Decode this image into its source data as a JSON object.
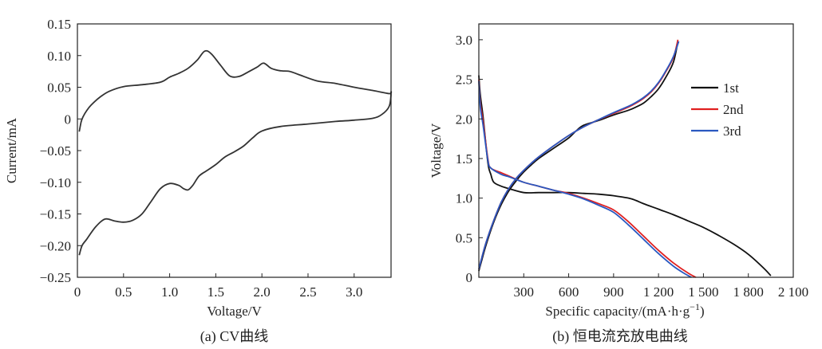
{
  "chart_data": [
    {
      "type": "line",
      "caption": "(a) CV曲线",
      "xlabel": "Voltage/V",
      "ylabel": "Current/mA",
      "xlim": [
        0,
        3.4
      ],
      "ylim": [
        -0.25,
        0.15
      ],
      "xticks": [
        0,
        0.5,
        1.0,
        1.5,
        2.0,
        2.5,
        3.0
      ],
      "xtick_labels": [
        "0",
        "0.5",
        "1.0",
        "1.5",
        "2.0",
        "2.5",
        "3.0"
      ],
      "yticks": [
        -0.25,
        -0.2,
        -0.15,
        -0.1,
        -0.05,
        0,
        0.05,
        0.1,
        0.15
      ],
      "ytick_labels": [
        "−0.25",
        "−0.20",
        "−0.15",
        "−0.10",
        "−0.05",
        "0",
        "0.05",
        "0.10",
        "0.15"
      ],
      "grid": false,
      "series": [
        {
          "color": "#333333",
          "x": [
            0.02,
            0.04,
            0.06,
            0.1,
            0.15,
            0.25,
            0.35,
            0.5,
            0.7,
            0.9,
            1.0,
            1.1,
            1.2,
            1.3,
            1.38,
            1.45,
            1.55,
            1.65,
            1.75,
            1.85,
            1.95,
            2.02,
            2.1,
            2.2,
            2.3,
            2.4,
            2.6,
            2.8,
            3.0,
            3.2,
            3.38,
            3.4,
            3.38,
            3.3,
            3.2,
            3.0,
            2.8,
            2.5,
            2.2,
            2.0,
            1.9,
            1.8,
            1.7,
            1.6,
            1.5,
            1.4,
            1.32,
            1.25,
            1.2,
            1.15,
            1.1,
            1.0,
            0.9,
            0.8,
            0.7,
            0.6,
            0.5,
            0.4,
            0.3,
            0.2,
            0.1,
            0.05,
            0.02
          ],
          "y": [
            -0.02,
            -0.005,
            0.003,
            0.013,
            0.022,
            0.035,
            0.044,
            0.051,
            0.054,
            0.058,
            0.066,
            0.072,
            0.08,
            0.093,
            0.107,
            0.103,
            0.085,
            0.068,
            0.067,
            0.074,
            0.082,
            0.088,
            0.08,
            0.076,
            0.075,
            0.07,
            0.06,
            0.056,
            0.05,
            0.045,
            0.04,
            0.042,
            0.02,
            0.007,
            0.001,
            -0.002,
            -0.004,
            -0.008,
            -0.012,
            -0.019,
            -0.03,
            -0.043,
            -0.052,
            -0.06,
            -0.072,
            -0.082,
            -0.09,
            -0.105,
            -0.112,
            -0.11,
            -0.105,
            -0.102,
            -0.11,
            -0.13,
            -0.15,
            -0.16,
            -0.163,
            -0.161,
            -0.158,
            -0.17,
            -0.19,
            -0.2,
            -0.215
          ]
        }
      ]
    },
    {
      "type": "line",
      "caption": "(b) 恒电流充放电曲线",
      "xlabel": "Specific capacity/(mA·h·g",
      "xlabel_sup": "−1",
      "xlabel_tail": ")",
      "ylabel": "Voltage/V",
      "xlim": [
        0,
        2100
      ],
      "ylim": [
        0,
        3.2
      ],
      "xticks": [
        300,
        600,
        900,
        1200,
        1500,
        1800,
        2100
      ],
      "xtick_labels": [
        "300",
        "600",
        "900",
        "1 200",
        "1 500",
        "1 800",
        "2 100"
      ],
      "yticks": [
        0,
        0.5,
        1.0,
        1.5,
        2.0,
        2.5,
        3.0
      ],
      "ytick_labels": [
        "0",
        "0.5",
        "1.0",
        "1.5",
        "2.0",
        "2.5",
        "3.0"
      ],
      "grid": false,
      "legend_position": "top-right",
      "series": [
        {
          "name": "1st",
          "color": "#111111",
          "discharge_x": [
            0,
            10,
            30,
            60,
            80,
            100,
            150,
            200,
            300,
            400,
            500,
            600,
            700,
            800,
            900,
            1000,
            1050,
            1100,
            1200,
            1300,
            1400,
            1500,
            1600,
            1700,
            1800,
            1900,
            1950
          ],
          "discharge_y": [
            2.55,
            2.3,
            2.0,
            1.45,
            1.3,
            1.2,
            1.15,
            1.12,
            1.07,
            1.07,
            1.07,
            1.07,
            1.06,
            1.05,
            1.03,
            1.0,
            0.97,
            0.93,
            0.86,
            0.79,
            0.71,
            0.63,
            0.53,
            0.42,
            0.29,
            0.12,
            0.02
          ],
          "charge_x": [
            0,
            20,
            50,
            100,
            150,
            200,
            250,
            300,
            350,
            400,
            500,
            600,
            650,
            700,
            800,
            900,
            1000,
            1050,
            1100,
            1150,
            1200,
            1250,
            1300,
            1330
          ],
          "charge_y": [
            0.08,
            0.22,
            0.42,
            0.7,
            0.92,
            1.09,
            1.22,
            1.33,
            1.42,
            1.5,
            1.63,
            1.76,
            1.85,
            1.92,
            1.98,
            2.05,
            2.11,
            2.15,
            2.2,
            2.28,
            2.38,
            2.53,
            2.72,
            2.98
          ]
        },
        {
          "name": "2nd",
          "color": "#e02020",
          "discharge_x": [
            0,
            10,
            30,
            60,
            80,
            150,
            200,
            300,
            400,
            500,
            600,
            700,
            800,
            900,
            1000,
            1100,
            1200,
            1300,
            1400,
            1450
          ],
          "discharge_y": [
            2.5,
            2.2,
            1.95,
            1.5,
            1.38,
            1.32,
            1.28,
            1.2,
            1.15,
            1.1,
            1.06,
            1.0,
            0.93,
            0.85,
            0.7,
            0.52,
            0.34,
            0.18,
            0.05,
            0.0
          ],
          "charge_x": [
            0,
            20,
            50,
            100,
            150,
            200,
            250,
            300,
            350,
            400,
            500,
            600,
            700,
            800,
            900,
            1000,
            1050,
            1100,
            1150,
            1200,
            1250,
            1300,
            1330
          ],
          "charge_y": [
            0.1,
            0.25,
            0.45,
            0.72,
            0.95,
            1.12,
            1.25,
            1.35,
            1.44,
            1.52,
            1.66,
            1.79,
            1.9,
            1.99,
            2.07,
            2.15,
            2.2,
            2.26,
            2.34,
            2.45,
            2.6,
            2.78,
            3.0
          ]
        },
        {
          "name": "3rd",
          "color": "#2a58c0",
          "discharge_x": [
            0,
            10,
            30,
            60,
            80,
            150,
            200,
            300,
            400,
            500,
            600,
            700,
            800,
            900,
            1000,
            1100,
            1200,
            1300,
            1380,
            1420
          ],
          "discharge_y": [
            2.48,
            2.15,
            1.9,
            1.48,
            1.38,
            1.3,
            1.27,
            1.2,
            1.15,
            1.1,
            1.05,
            0.99,
            0.91,
            0.82,
            0.66,
            0.48,
            0.3,
            0.14,
            0.04,
            0.0
          ],
          "charge_x": [
            0,
            20,
            50,
            100,
            150,
            200,
            250,
            300,
            350,
            400,
            500,
            600,
            700,
            800,
            900,
            1000,
            1050,
            1100,
            1150,
            1200,
            1250,
            1300,
            1335
          ],
          "charge_y": [
            0.1,
            0.25,
            0.45,
            0.72,
            0.95,
            1.12,
            1.25,
            1.35,
            1.44,
            1.52,
            1.66,
            1.79,
            1.9,
            1.99,
            2.08,
            2.16,
            2.21,
            2.27,
            2.35,
            2.46,
            2.61,
            2.79,
            2.98
          ]
        }
      ]
    }
  ]
}
